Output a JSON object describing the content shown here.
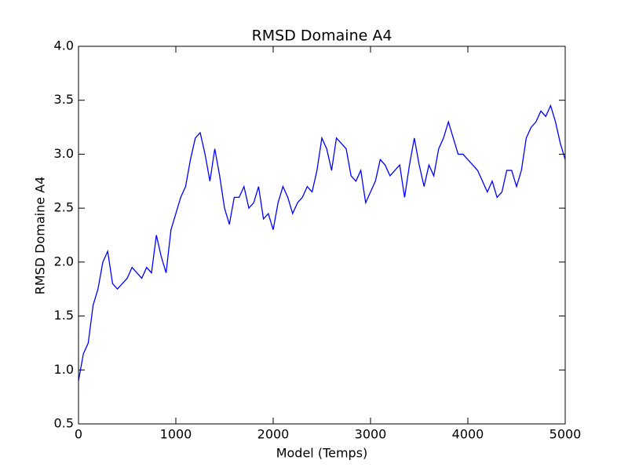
{
  "chart_data": {
    "type": "line",
    "title": "RMSD Domaine A4",
    "xlabel": "Model (Temps)",
    "ylabel": "RMSD Domaine A4",
    "x": [
      0,
      50,
      100,
      150,
      200,
      250,
      300,
      350,
      400,
      450,
      500,
      550,
      600,
      650,
      700,
      750,
      800,
      850,
      900,
      950,
      1000,
      1050,
      1100,
      1150,
      1200,
      1250,
      1300,
      1350,
      1400,
      1450,
      1500,
      1550,
      1600,
      1650,
      1700,
      1750,
      1800,
      1850,
      1900,
      1950,
      2000,
      2050,
      2100,
      2150,
      2200,
      2250,
      2300,
      2350,
      2400,
      2450,
      2500,
      2550,
      2600,
      2650,
      2700,
      2750,
      2800,
      2850,
      2900,
      2950,
      3000,
      3050,
      3100,
      3150,
      3200,
      3250,
      3300,
      3350,
      3400,
      3450,
      3500,
      3550,
      3600,
      3650,
      3700,
      3750,
      3800,
      3850,
      3900,
      3950,
      4000,
      4050,
      4100,
      4150,
      4200,
      4250,
      4300,
      4350,
      4400,
      4450,
      4500,
      4550,
      4600,
      4650,
      4700,
      4750,
      4800,
      4850,
      4900,
      4950,
      5000
    ],
    "series": [
      {
        "name": "RMSD Domaine A4",
        "color": "#0000ff",
        "values": [
          0.9,
          1.15,
          1.25,
          1.6,
          1.75,
          2.0,
          2.1,
          1.8,
          1.75,
          1.8,
          1.85,
          1.95,
          1.9,
          1.85,
          1.95,
          1.9,
          2.25,
          2.05,
          1.9,
          2.3,
          2.45,
          2.6,
          2.7,
          2.95,
          3.15,
          3.2,
          3.0,
          2.75,
          3.05,
          2.8,
          2.5,
          2.35,
          2.6,
          2.6,
          2.7,
          2.5,
          2.55,
          2.7,
          2.4,
          2.45,
          2.3,
          2.55,
          2.7,
          2.6,
          2.45,
          2.55,
          2.6,
          2.7,
          2.65,
          2.85,
          3.15,
          3.05,
          2.85,
          3.15,
          3.1,
          3.05,
          2.8,
          2.75,
          2.85,
          2.55,
          2.65,
          2.75,
          2.95,
          2.9,
          2.8,
          2.85,
          2.9,
          2.6,
          2.9,
          3.15,
          2.9,
          2.7,
          2.9,
          2.8,
          3.05,
          3.15,
          3.3,
          3.15,
          3.0,
          3.0,
          2.95,
          2.9,
          2.85,
          2.75,
          2.65,
          2.75,
          2.6,
          2.65,
          2.85,
          2.85,
          2.7,
          2.85,
          3.15,
          3.25,
          3.3,
          3.4,
          3.35,
          3.45,
          3.3,
          3.1,
          2.95
        ]
      }
    ],
    "xlim": [
      0,
      5000
    ],
    "xticks": [
      0,
      1000,
      2000,
      3000,
      4000,
      5000
    ],
    "ylim": [
      0.5,
      4.0
    ],
    "yticks": [
      0.5,
      {
        "value": 1,
        "label": "1.0"
      },
      1.5,
      {
        "value": 2,
        "label": "2.0"
      },
      2.5,
      {
        "value": 3,
        "label": "3.0"
      },
      3.5,
      {
        "value": 4,
        "label": "4.0"
      }
    ],
    "grid": false
  }
}
